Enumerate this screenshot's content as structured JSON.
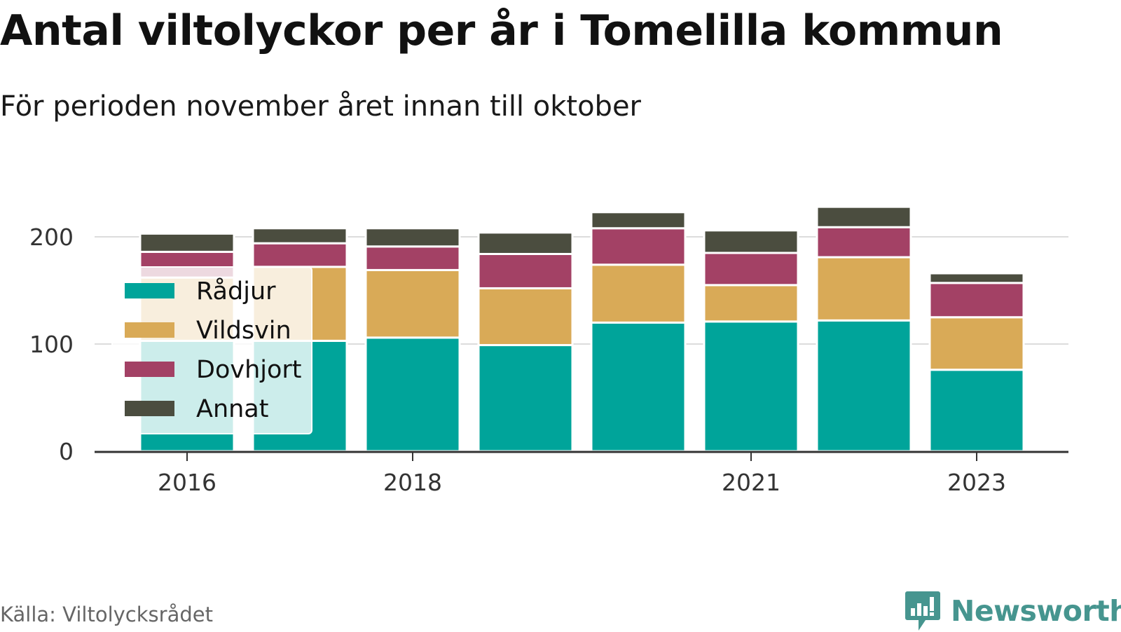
{
  "title": "Antal viltolyckor per år i Tomelilla kommun",
  "subtitle": "För perioden november året innan till oktober",
  "source": "Källa: Viltolycksrådet",
  "brand": {
    "name": "Newsworthy",
    "icon": "newsworthy-logo-icon",
    "color": "#46958f"
  },
  "chart_data": {
    "type": "bar",
    "stacked": true,
    "categories": [
      "2016",
      "2017",
      "2018",
      "2019",
      "2020",
      "2021",
      "2022",
      "2023"
    ],
    "x_tick_labels": [
      "2016",
      "2018",
      "2021",
      "2023"
    ],
    "y_ticks": [
      0,
      100,
      200
    ],
    "ylim": [
      0,
      250
    ],
    "grid": "horizontal",
    "legend_position": "top-left",
    "series": [
      {
        "name": "Rådjur",
        "color": "#00a49a",
        "values": [
          103,
          103,
          106,
          99,
          120,
          121,
          122,
          76
        ]
      },
      {
        "name": "Vildsvin",
        "color": "#d9aa57",
        "values": [
          59,
          69,
          63,
          53,
          54,
          34,
          59,
          49
        ]
      },
      {
        "name": "Dovhjort",
        "color": "#a34165",
        "values": [
          24,
          22,
          22,
          32,
          34,
          30,
          28,
          32
        ]
      },
      {
        "name": "Annat",
        "color": "#4b4d3f",
        "values": [
          17,
          14,
          17,
          20,
          15,
          21,
          19,
          9
        ]
      }
    ]
  }
}
